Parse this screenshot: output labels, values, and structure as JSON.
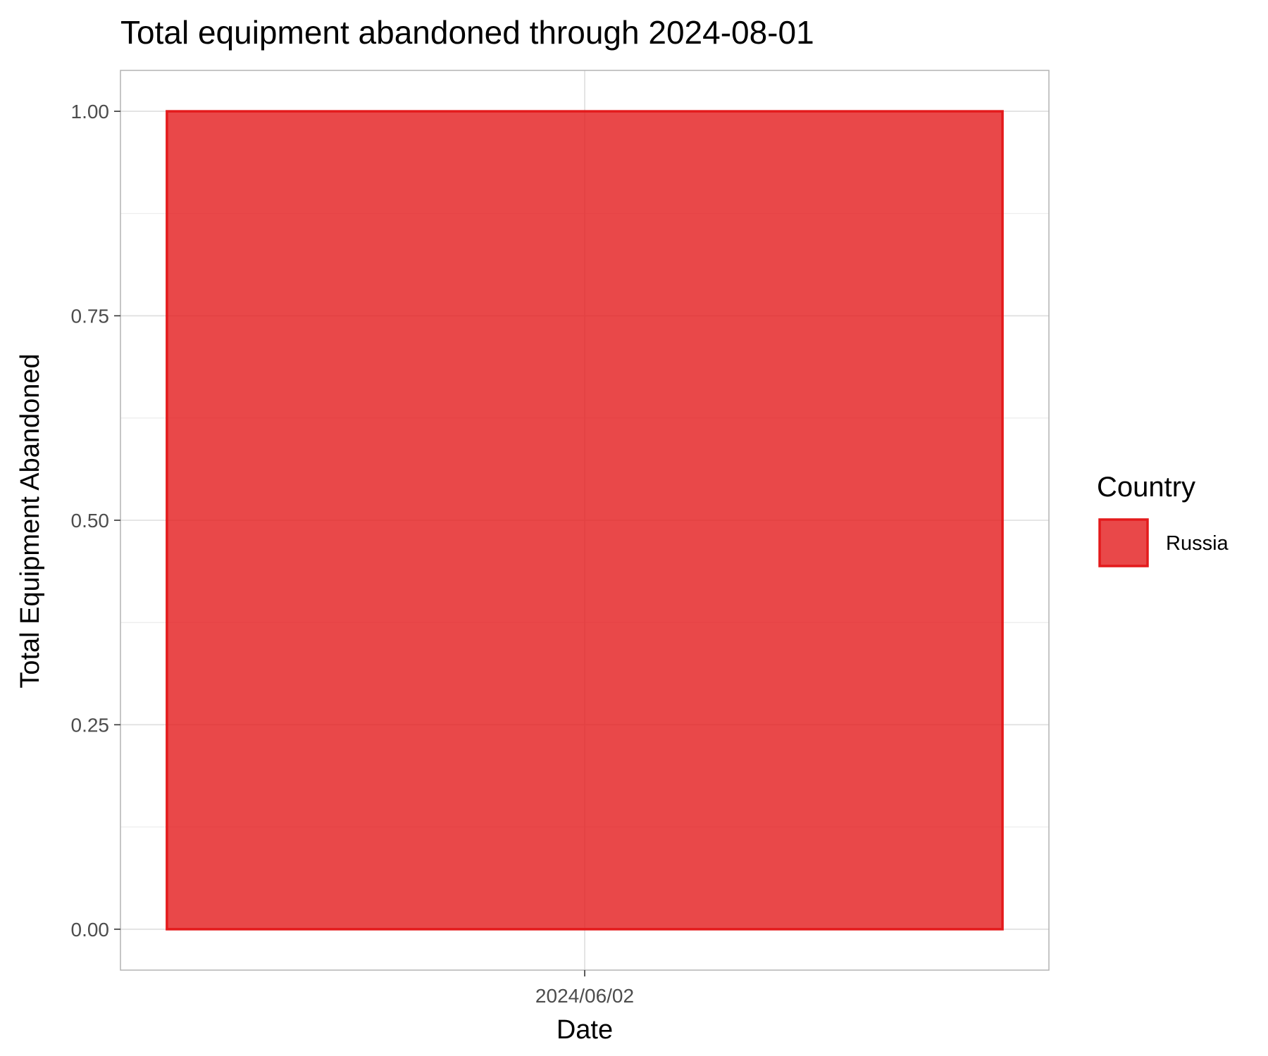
{
  "chart_data": {
    "type": "bar",
    "title": "Total equipment abandoned through 2024-08-01",
    "xlabel": "Date",
    "ylabel": "Total Equipment Abandoned",
    "categories": [
      "2024/06/02"
    ],
    "series": [
      {
        "name": "Russia",
        "values": [
          1
        ],
        "color": "#e41a1c"
      }
    ],
    "ylim": [
      -0.05,
      1.05
    ],
    "yticks": [
      0,
      0.25,
      0.5,
      0.75,
      1
    ],
    "ytick_labels": [
      "0.00",
      "0.25",
      "0.50",
      "0.75",
      "1.00"
    ],
    "grid": true,
    "legend": {
      "title": "Country",
      "position": "right"
    }
  }
}
